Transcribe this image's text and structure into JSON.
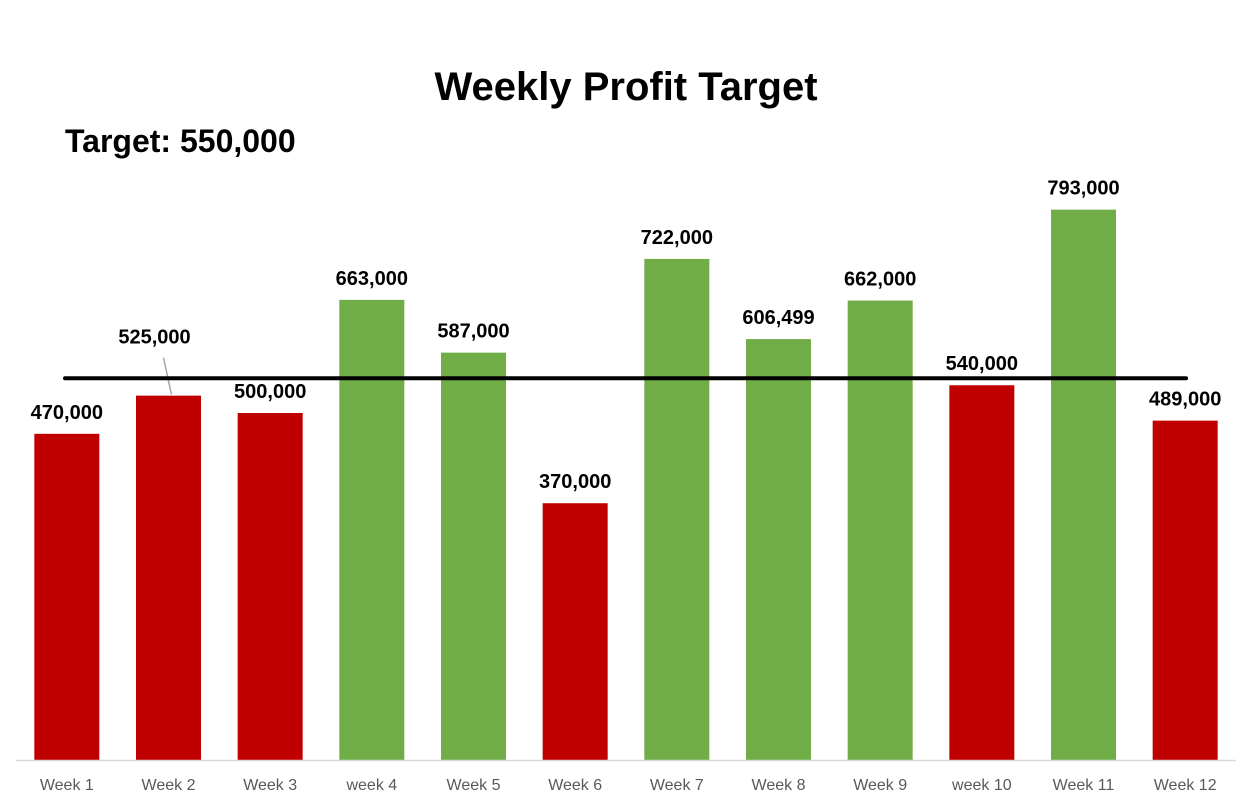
{
  "chart_data": {
    "type": "bar",
    "title": "Weekly Profit Target",
    "subtitle": "Target: 550,000",
    "categories": [
      "Week 1",
      "Week 2",
      "Week 3",
      "week 4",
      "Week 5",
      "Week 6",
      "Week 7",
      "Week 8",
      "Week 9",
      "week 10",
      "Week 11",
      "Week 12"
    ],
    "values": [
      470000,
      525000,
      500000,
      663000,
      587000,
      370000,
      722000,
      606499,
      662000,
      540000,
      793000,
      489000
    ],
    "data_labels": [
      "470,000",
      "525,000",
      "500,000",
      "663,000",
      "587,000",
      "370,000",
      "722,000",
      "606,499",
      "662,000",
      "540,000",
      "793,000",
      "489,000"
    ],
    "target": 550000,
    "ylim": [
      0,
      900000
    ],
    "xlabel": "",
    "ylabel": "",
    "grid": false,
    "legend": "none",
    "colors": {
      "above_target": "#70ad47",
      "below_target": "#c00000",
      "target_line": "#000000",
      "axis": "#d9d9d9"
    }
  }
}
